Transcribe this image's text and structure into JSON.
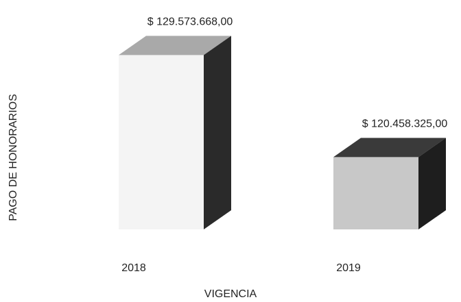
{
  "chart_data": {
    "type": "bar3d",
    "xlabel": "VIGENCIA",
    "ylabel": "PAGO DE HONORARIOS",
    "categories": [
      "2018",
      "2019"
    ],
    "values": [
      129573668,
      120458325
    ],
    "value_labels": [
      "$ 129.573.668,00",
      "$ 120.458.325,00"
    ],
    "colors": [
      {
        "front": "#f4f4f4",
        "top": "#a9a9a9",
        "side": "#2a2a2a"
      },
      {
        "front": "#c8c8c8",
        "top": "#3a3a3a",
        "side": "#1e1e1e"
      }
    ],
    "ylim": [
      114000000,
      131000000
    ]
  }
}
